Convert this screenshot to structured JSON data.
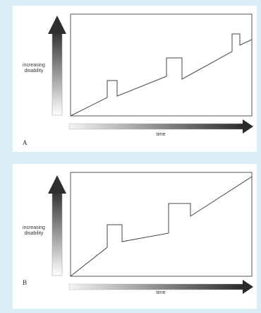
{
  "colors": {
    "background": "#d9eef5",
    "panel": "#ffffff",
    "line": "#444444",
    "arrow_dark": "#2b2b2b"
  },
  "panels": [
    {
      "letter": "A",
      "y_label": "increasing disability",
      "x_label": "time"
    },
    {
      "letter": "B",
      "y_label": "increasing disability",
      "x_label": "time"
    }
  ]
}
